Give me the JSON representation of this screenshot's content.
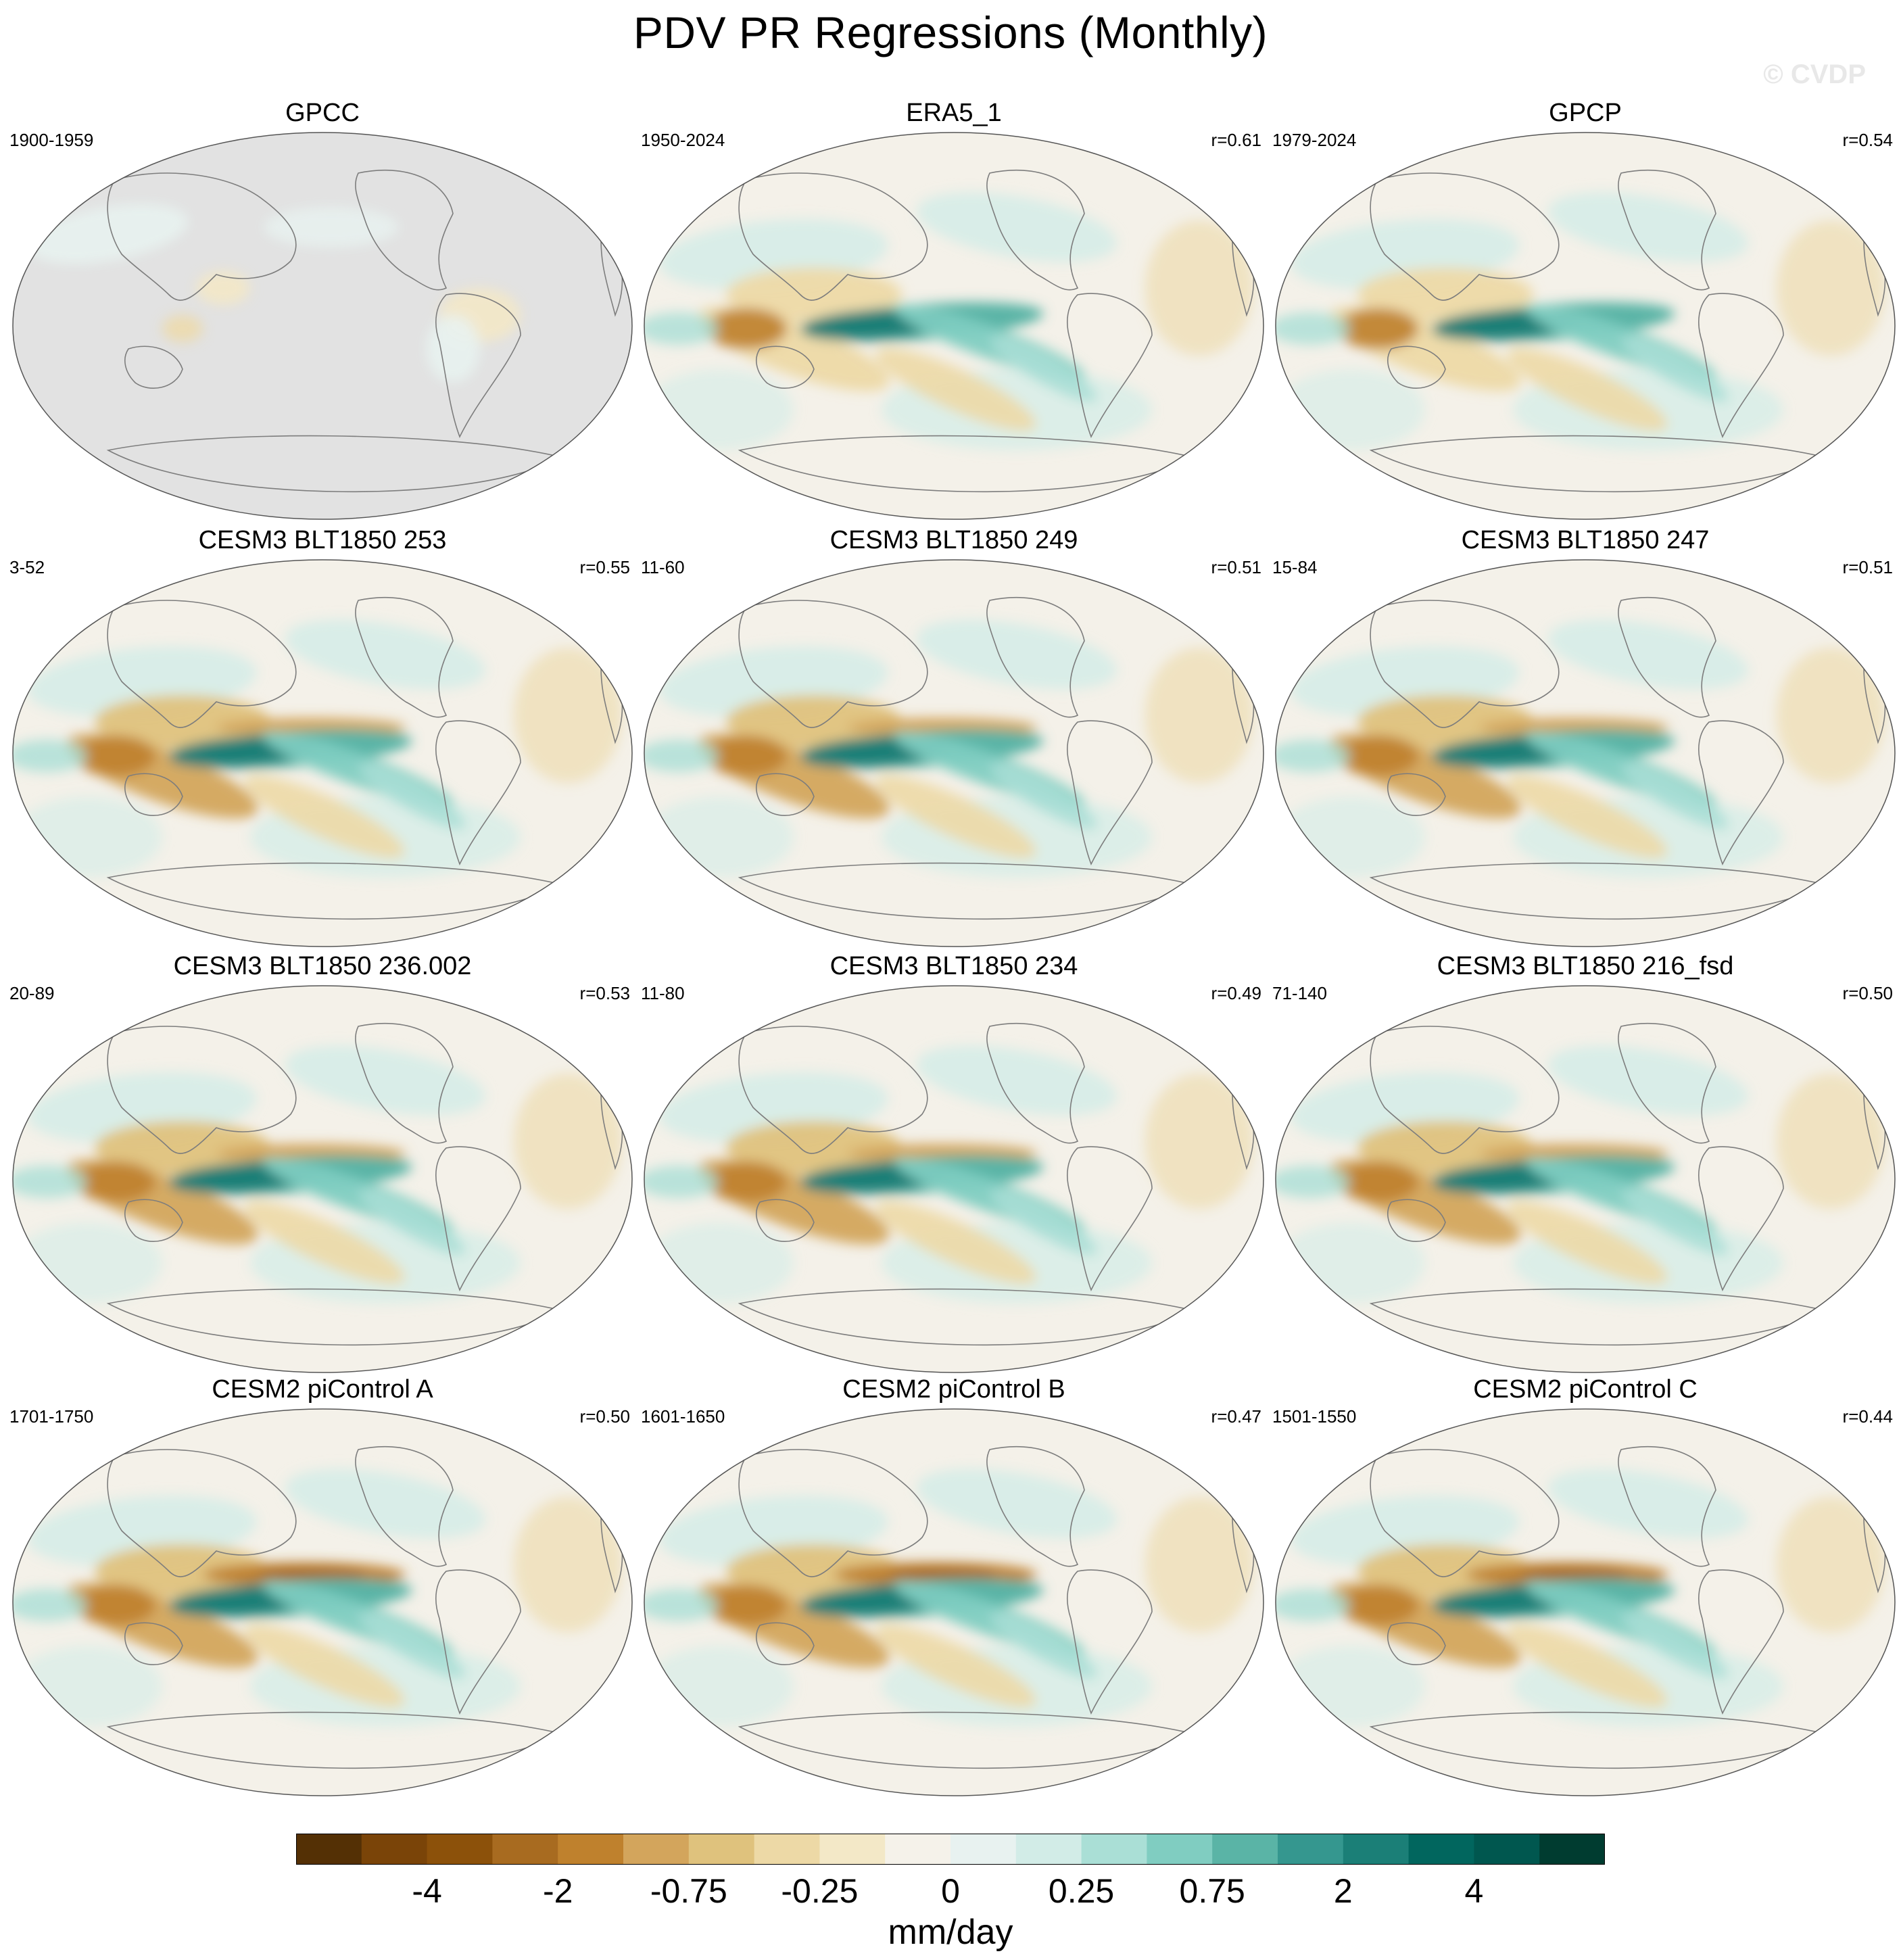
{
  "title": "PDV PR Regressions (Monthly)",
  "watermark": "© CVDP",
  "panels": [
    {
      "name": "GPCC",
      "period": "1900-1959",
      "corr": "",
      "style": "obs"
    },
    {
      "name": "ERA5_1",
      "period": "1950-2024",
      "corr": "r=0.61",
      "style": "obs2"
    },
    {
      "name": "GPCP",
      "period": "1979-2024",
      "corr": "r=0.54",
      "style": "obs2"
    },
    {
      "name": "CESM3 BLT1850 253",
      "period": "3-52",
      "corr": "r=0.55",
      "style": "model"
    },
    {
      "name": "CESM3 BLT1850 249",
      "period": "11-60",
      "corr": "r=0.51",
      "style": "model"
    },
    {
      "name": "CESM3 BLT1850 247",
      "period": "15-84",
      "corr": "r=0.51",
      "style": "model"
    },
    {
      "name": "CESM3 BLT1850 236.002",
      "period": "20-89",
      "corr": "r=0.53",
      "style": "model"
    },
    {
      "name": "CESM3 BLT1850 234",
      "period": "11-80",
      "corr": "r=0.49",
      "style": "model"
    },
    {
      "name": "CESM3 BLT1850 216_fsd",
      "period": "71-140",
      "corr": "r=0.50",
      "style": "model"
    },
    {
      "name": "CESM2 piControl A",
      "period": "1701-1750",
      "corr": "r=0.50",
      "style": "pi"
    },
    {
      "name": "CESM2 piControl B",
      "period": "1601-1650",
      "corr": "r=0.47",
      "style": "pi"
    },
    {
      "name": "CESM2 piControl C",
      "period": "1501-1550",
      "corr": "r=0.44",
      "style": "pi"
    }
  ],
  "colorbar": {
    "units": "mm/day",
    "labels": [
      "-4",
      "-2",
      "-0.75",
      "-0.25",
      "0",
      "0.25",
      "0.75",
      "2",
      "4"
    ],
    "colors": [
      "#543005",
      "#7a4408",
      "#8c510a",
      "#a86b20",
      "#bf812d",
      "#d3a55c",
      "#dfc27d",
      "#edd9a6",
      "#f3e8c7",
      "#f5f2ea",
      "#e8f2f0",
      "#d2ece7",
      "#aadfd6",
      "#80cdc1",
      "#5ab4a6",
      "#35978f",
      "#1b7f77",
      "#01665e",
      "#00574f",
      "#003c30"
    ]
  }
}
